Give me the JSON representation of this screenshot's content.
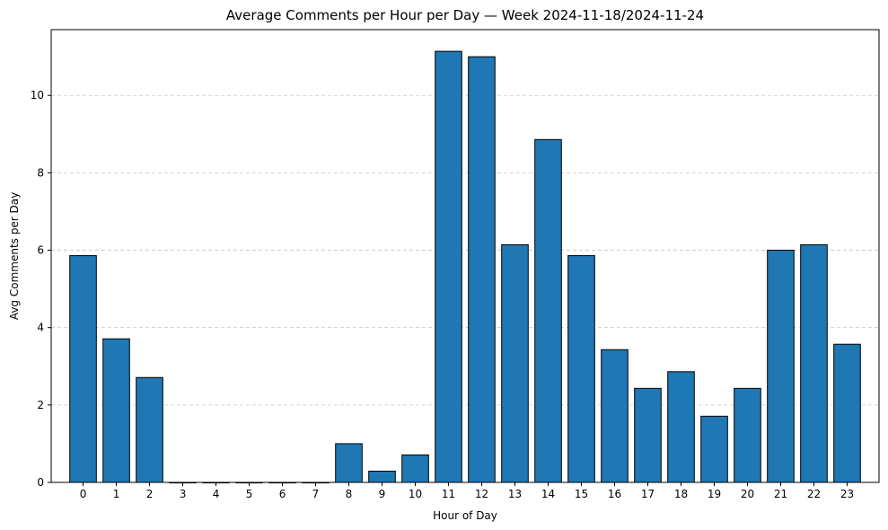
{
  "chart_data": {
    "type": "bar",
    "title": "Average Comments per Hour per Day — Week 2024-11-18/2024-11-24",
    "xlabel": "Hour of Day",
    "ylabel": "Avg Comments per Day",
    "categories": [
      "0",
      "1",
      "2",
      "3",
      "4",
      "5",
      "6",
      "7",
      "8",
      "9",
      "10",
      "11",
      "12",
      "13",
      "14",
      "15",
      "16",
      "17",
      "18",
      "19",
      "20",
      "21",
      "22",
      "23"
    ],
    "values": [
      5.86,
      3.71,
      2.71,
      0,
      0,
      0,
      0,
      0,
      1.0,
      0.29,
      0.71,
      11.14,
      11.0,
      6.14,
      8.86,
      5.86,
      3.43,
      2.43,
      2.86,
      1.71,
      2.43,
      6.0,
      6.14,
      3.57
    ],
    "ylim": [
      0,
      11.7
    ],
    "yticks": [
      0,
      2,
      4,
      6,
      8,
      10
    ],
    "grid": "y-dashed",
    "bar_color": "#1f77b4",
    "bar_edge_color": "#000000",
    "grid_color": "#c8c8c8"
  }
}
